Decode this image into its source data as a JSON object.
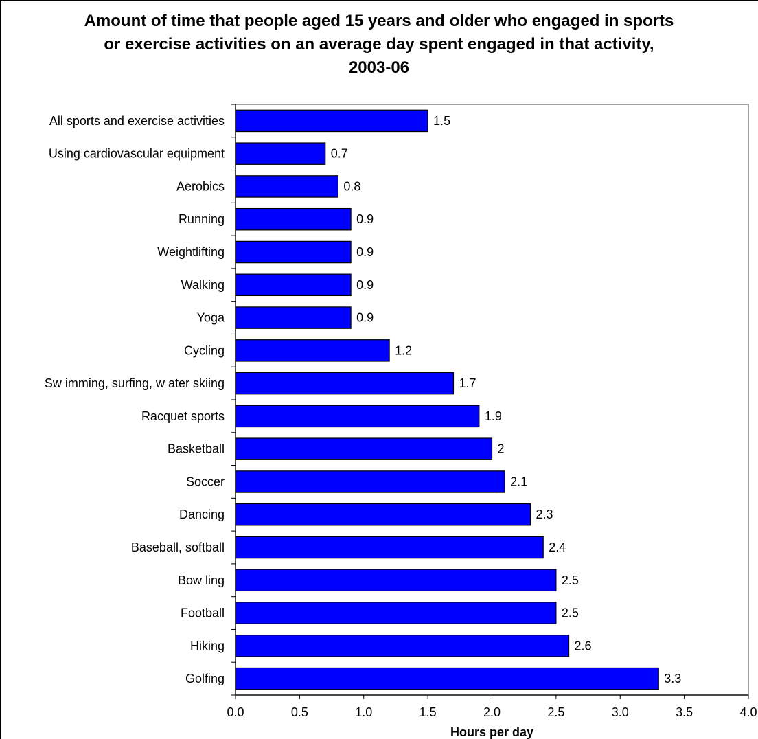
{
  "chart_data": {
    "type": "bar",
    "orientation": "horizontal",
    "title": "Amount of time that people aged 15 years and older who engaged in sports\nor exercise activities on an average day spent engaged in that activity,\n2003-06",
    "xlabel": "Hours per day",
    "ylabel": "",
    "xlim": [
      0,
      4
    ],
    "xticks": [
      "0.0",
      "0.5",
      "1.0",
      "1.5",
      "2.0",
      "2.5",
      "3.0",
      "3.5",
      "4.0"
    ],
    "grid": false,
    "bar_color": "#0000FF",
    "categories": [
      "All sports and exercise activities",
      "Using cardiovascular equipment",
      "Aerobics",
      "Running",
      "Weightlifting",
      "Walking",
      "Yoga",
      "Cycling",
      "Sw imming, surfing, w ater skiing",
      "Racquet sports",
      "Basketball",
      "Soccer",
      "Dancing",
      "Baseball, softball",
      "Bow ling",
      "Football",
      "Hiking",
      "Golfing"
    ],
    "values": [
      1.5,
      0.7,
      0.8,
      0.9,
      0.9,
      0.9,
      0.9,
      1.2,
      1.7,
      1.9,
      2,
      2.1,
      2.3,
      2.4,
      2.5,
      2.5,
      2.6,
      3.3
    ],
    "value_labels": [
      "1.5",
      "0.7",
      "0.8",
      "0.9",
      "0.9",
      "0.9",
      "0.9",
      "1.2",
      "1.7",
      "1.9",
      "2",
      "2.1",
      "2.3",
      "2.4",
      "2.5",
      "2.5",
      "2.6",
      "3.3"
    ]
  }
}
